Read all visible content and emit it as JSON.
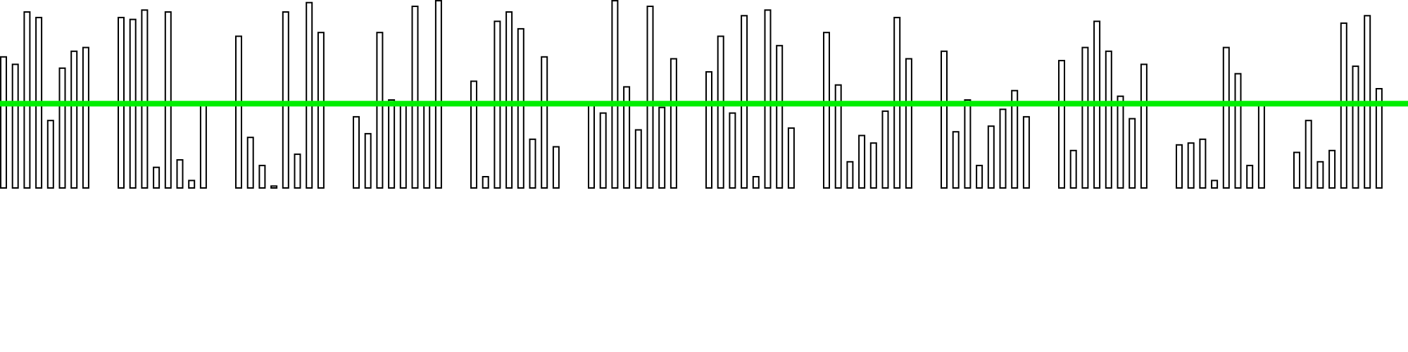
{
  "chart_data": {
    "type": "bar",
    "title": "",
    "xlabel": "",
    "ylabel": "",
    "ylim": [
      0,
      1
    ],
    "grid": false,
    "legend": "none",
    "bar_fill": "#ffffff",
    "bar_stroke": "#000000",
    "threshold": {
      "value": 0.45,
      "color": "#00ee00"
    },
    "groups": [
      [
        0.7,
        0.66,
        0.94,
        0.91,
        0.36,
        0.64,
        0.73,
        0.75
      ],
      [
        0.91,
        0.9,
        0.95,
        0.11,
        0.94,
        0.15,
        0.04,
        0.44
      ],
      [
        0.81,
        0.27,
        0.12,
        0.01,
        0.94,
        0.18,
        0.99,
        0.83
      ],
      [
        0.38,
        0.29,
        0.83,
        0.47,
        0.44,
        0.97,
        0.45,
        1.0
      ],
      [
        0.57,
        0.06,
        0.89,
        0.94,
        0.85,
        0.26,
        0.7,
        0.22
      ],
      [
        0.44,
        0.4,
        1.0,
        0.54,
        0.31,
        0.97,
        0.43,
        0.69
      ],
      [
        0.62,
        0.81,
        0.4,
        0.92,
        0.06,
        0.95,
        0.76,
        0.32
      ],
      [
        0.83,
        0.55,
        0.14,
        0.28,
        0.24,
        0.41,
        0.91,
        0.69
      ],
      [
        0.73,
        0.3,
        0.47,
        0.12,
        0.33,
        0.42,
        0.52,
        0.38
      ],
      [
        0.68,
        0.2,
        0.75,
        0.89,
        0.73,
        0.49,
        0.37,
        0.66
      ],
      [
        0.23,
        0.24,
        0.26,
        0.04,
        0.75,
        0.61,
        0.12,
        0.45
      ],
      [
        0.19,
        0.36,
        0.14,
        0.2,
        0.88,
        0.65,
        0.92,
        0.53
      ]
    ]
  }
}
